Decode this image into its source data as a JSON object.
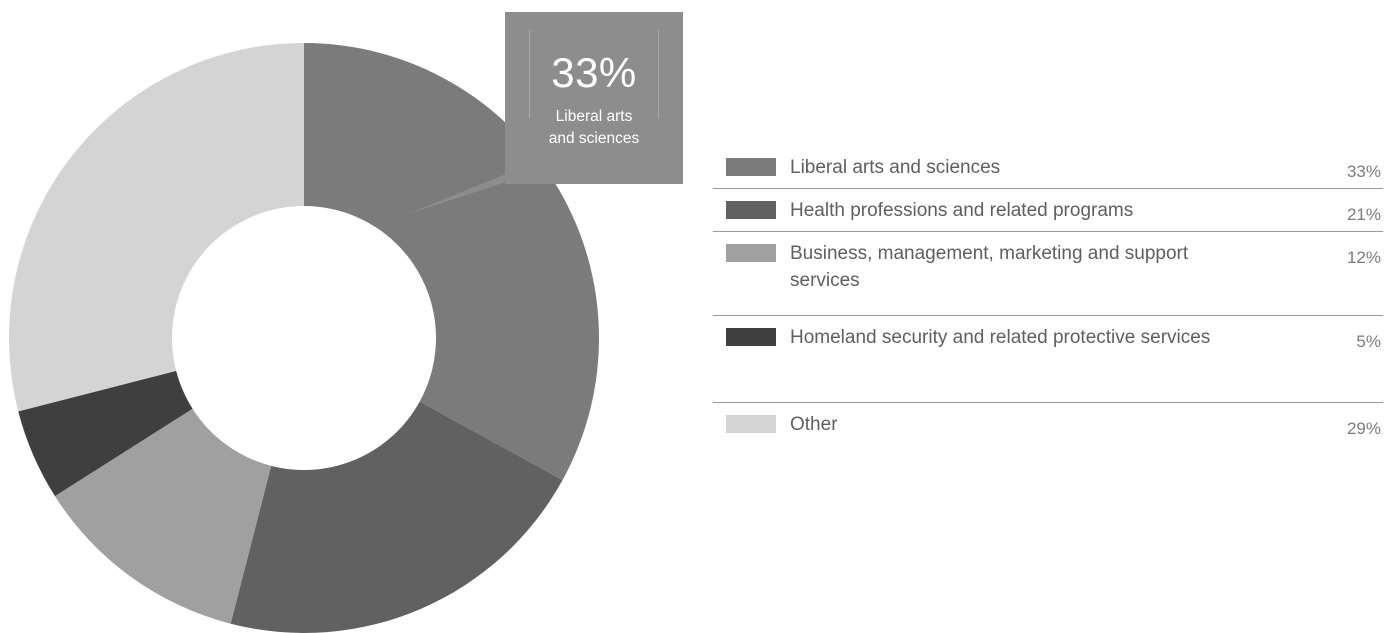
{
  "chart_data": {
    "type": "pie",
    "subtype": "donut",
    "slices": [
      {
        "label": "Liberal arts and sciences",
        "value": 33,
        "display": "33%",
        "color": "#7b7b7b"
      },
      {
        "label": "Health professions and related programs",
        "value": 21,
        "display": "21%",
        "color": "#616161"
      },
      {
        "label": "Business, management, marketing and support services",
        "value": 12,
        "display": "12%",
        "color": "#a0a0a0"
      },
      {
        "label": "Homeland security and related protective services",
        "value": 5,
        "display": "5%",
        "color": "#3f3f3f"
      },
      {
        "label": "Other",
        "value": 29,
        "display": "29%",
        "color": "#d4d4d4"
      }
    ],
    "callout": {
      "value": "33%",
      "label_line1": "Liberal arts",
      "label_line2": "and sciences"
    },
    "legend_placement": "right"
  }
}
